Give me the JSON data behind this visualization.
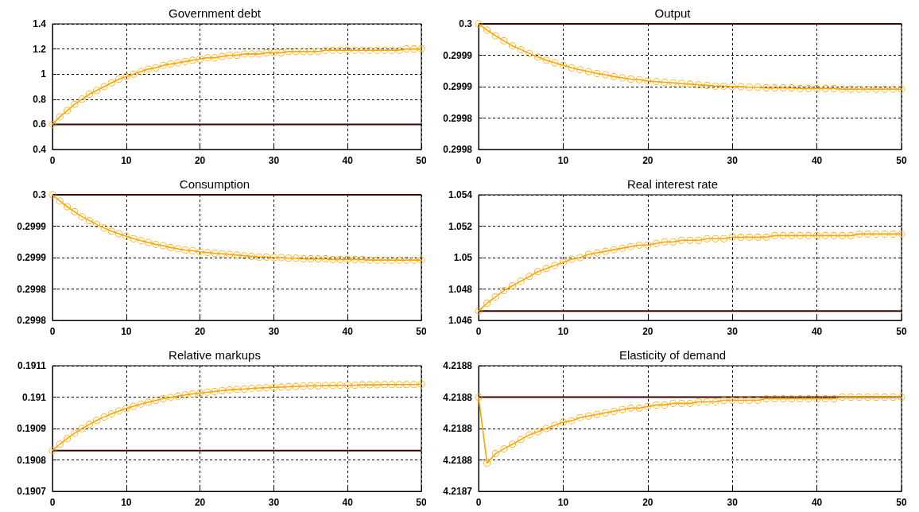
{
  "chart_data": [
    {
      "type": "line",
      "title": "Government debt",
      "x": [
        0,
        1,
        2,
        3,
        4,
        5,
        6,
        7,
        8,
        9,
        10,
        11,
        12,
        13,
        14,
        15,
        16,
        17,
        18,
        19,
        20,
        21,
        22,
        23,
        24,
        25,
        26,
        27,
        28,
        29,
        30,
        31,
        32,
        33,
        34,
        35,
        36,
        37,
        38,
        39,
        40,
        41,
        42,
        43,
        44,
        45,
        46,
        47,
        48,
        49,
        50
      ],
      "series": [
        {
          "color": "#ffa500",
          "values": [
            0.6,
            0.66,
            0.71,
            0.76,
            0.8,
            0.84,
            0.87,
            0.9,
            0.93,
            0.96,
            0.98,
            1.0,
            1.02,
            1.04,
            1.05,
            1.07,
            1.08,
            1.09,
            1.1,
            1.11,
            1.12,
            1.13,
            1.13,
            1.14,
            1.15,
            1.15,
            1.16,
            1.16,
            1.16,
            1.17,
            1.17,
            1.17,
            1.18,
            1.18,
            1.18,
            1.18,
            1.18,
            1.19,
            1.19,
            1.19,
            1.19,
            1.19,
            1.19,
            1.19,
            1.19,
            1.19,
            1.19,
            1.19,
            1.2,
            1.2,
            1.2
          ]
        }
      ],
      "xlim": [
        0,
        50
      ],
      "xticks": [
        0,
        10,
        20,
        30,
        40,
        50
      ],
      "ylim": [
        0.4,
        1.4
      ],
      "yticks": [
        0.4,
        0.6,
        0.8,
        1,
        1.2,
        1.4
      ],
      "ref_lines": [
        {
          "axis": "y",
          "value": 0.6,
          "color": "#3c0000"
        }
      ],
      "grid": true,
      "marker": "circle",
      "line_style": "solid"
    },
    {
      "type": "line",
      "title": "Output",
      "x": [
        0,
        1,
        2,
        3,
        4,
        5,
        6,
        7,
        8,
        9,
        10,
        11,
        12,
        13,
        14,
        15,
        16,
        17,
        18,
        19,
        20,
        21,
        22,
        23,
        24,
        25,
        26,
        27,
        28,
        29,
        30,
        31,
        32,
        33,
        34,
        35,
        36,
        37,
        38,
        39,
        40,
        41,
        42,
        43,
        44,
        45,
        46,
        47,
        48,
        49,
        50
      ],
      "series": [
        {
          "color": "#ffa500",
          "values": [
            0.3,
            0.29999,
            0.299981,
            0.299973,
            0.299965,
            0.299959,
            0.299953,
            0.299947,
            0.299942,
            0.299938,
            0.299934,
            0.29993,
            0.299927,
            0.299924,
            0.299921,
            0.299919,
            0.299916,
            0.299914,
            0.299912,
            0.299911,
            0.299909,
            0.299908,
            0.299907,
            0.299906,
            0.299905,
            0.299904,
            0.299903,
            0.299902,
            0.299901,
            0.299901,
            0.2999,
            0.2999,
            0.299899,
            0.299899,
            0.299898,
            0.299898,
            0.299898,
            0.299898,
            0.299897,
            0.299897,
            0.299897,
            0.299897,
            0.299897,
            0.299896,
            0.299896,
            0.299896,
            0.299896,
            0.299896,
            0.299896,
            0.299896,
            0.299896
          ]
        }
      ],
      "xlim": [
        0,
        50
      ],
      "xticks": [
        0,
        10,
        20,
        30,
        40,
        50
      ],
      "ylim": [
        0.2998,
        0.3
      ],
      "yticks": [
        {
          "value": 0.2998,
          "label": "0.2998"
        },
        {
          "value": 0.29985,
          "label": "0.2998"
        },
        {
          "value": 0.2999,
          "label": "0.2999"
        },
        {
          "value": 0.29995,
          "label": "0.2999"
        },
        {
          "value": 0.3,
          "label": "0.3"
        }
      ],
      "ref_lines": [
        {
          "axis": "y",
          "value": 0.3,
          "color": "#3c0000"
        }
      ],
      "grid": true,
      "marker": "circle",
      "line_style": "solid"
    },
    {
      "type": "line",
      "title": "Consumption",
      "x": [
        0,
        1,
        2,
        3,
        4,
        5,
        6,
        7,
        8,
        9,
        10,
        11,
        12,
        13,
        14,
        15,
        16,
        17,
        18,
        19,
        20,
        21,
        22,
        23,
        24,
        25,
        26,
        27,
        28,
        29,
        30,
        31,
        32,
        33,
        34,
        35,
        36,
        37,
        38,
        39,
        40,
        41,
        42,
        43,
        44,
        45,
        46,
        47,
        48,
        49,
        50
      ],
      "series": [
        {
          "color": "#ffa500",
          "values": [
            0.3,
            0.29999,
            0.299981,
            0.299973,
            0.299965,
            0.299959,
            0.299953,
            0.299947,
            0.299942,
            0.299938,
            0.299934,
            0.29993,
            0.299927,
            0.299924,
            0.299921,
            0.299919,
            0.299916,
            0.299914,
            0.299912,
            0.299911,
            0.299909,
            0.299908,
            0.299907,
            0.299906,
            0.299905,
            0.299904,
            0.299903,
            0.299902,
            0.299901,
            0.299901,
            0.2999,
            0.2999,
            0.299899,
            0.299899,
            0.299898,
            0.299898,
            0.299898,
            0.299898,
            0.299897,
            0.299897,
            0.299897,
            0.299897,
            0.299897,
            0.299896,
            0.299896,
            0.299896,
            0.299896,
            0.299896,
            0.299896,
            0.299896,
            0.299896
          ]
        }
      ],
      "xlim": [
        0,
        50
      ],
      "xticks": [
        0,
        10,
        20,
        30,
        40,
        50
      ],
      "ylim": [
        0.2998,
        0.3
      ],
      "yticks": [
        {
          "value": 0.2998,
          "label": "0.2998"
        },
        {
          "value": 0.29985,
          "label": "0.2998"
        },
        {
          "value": 0.2999,
          "label": "0.2999"
        },
        {
          "value": 0.29995,
          "label": "0.2999"
        },
        {
          "value": 0.3,
          "label": "0.3"
        }
      ],
      "ref_lines": [
        {
          "axis": "y",
          "value": 0.3,
          "color": "#3c0000"
        }
      ],
      "grid": true,
      "marker": "circle",
      "line_style": "solid"
    },
    {
      "type": "line",
      "title": "Real interest rate",
      "x": [
        0,
        1,
        2,
        3,
        4,
        5,
        6,
        7,
        8,
        9,
        10,
        11,
        12,
        13,
        14,
        15,
        16,
        17,
        18,
        19,
        20,
        21,
        22,
        23,
        24,
        25,
        26,
        27,
        28,
        29,
        30,
        31,
        32,
        33,
        34,
        35,
        36,
        37,
        38,
        39,
        40,
        41,
        42,
        43,
        44,
        45,
        46,
        47,
        48,
        49,
        50
      ],
      "series": [
        {
          "color": "#ffa500",
          "values": [
            1.0466,
            1.0471,
            1.0475,
            1.0479,
            1.0482,
            1.0485,
            1.0488,
            1.0491,
            1.0493,
            1.0495,
            1.0497,
            1.0499,
            1.05,
            1.0502,
            1.0503,
            1.0504,
            1.0505,
            1.0506,
            1.0507,
            1.0508,
            1.0508,
            1.0509,
            1.051,
            1.051,
            1.0511,
            1.0511,
            1.0511,
            1.0512,
            1.0512,
            1.0512,
            1.0513,
            1.0513,
            1.0513,
            1.0513,
            1.0513,
            1.0514,
            1.0514,
            1.0514,
            1.0514,
            1.0514,
            1.0514,
            1.0514,
            1.0514,
            1.0514,
            1.0514,
            1.0515,
            1.0515,
            1.0515,
            1.0515,
            1.0515,
            1.0515
          ]
        }
      ],
      "xlim": [
        0,
        50
      ],
      "xticks": [
        0,
        10,
        20,
        30,
        40,
        50
      ],
      "ylim": [
        1.046,
        1.054
      ],
      "yticks": [
        1.046,
        1.048,
        1.05,
        1.052,
        1.054
      ],
      "ref_lines": [
        {
          "axis": "y",
          "value": 1.0466,
          "color": "#3c0000"
        }
      ],
      "grid": true,
      "marker": "circle",
      "line_style": "solid"
    },
    {
      "type": "line",
      "title": "Relative markups",
      "x": [
        0,
        1,
        2,
        3,
        4,
        5,
        6,
        7,
        8,
        9,
        10,
        11,
        12,
        13,
        14,
        15,
        16,
        17,
        18,
        19,
        20,
        21,
        22,
        23,
        24,
        25,
        26,
        27,
        28,
        29,
        30,
        31,
        32,
        33,
        34,
        35,
        36,
        37,
        38,
        39,
        40,
        41,
        42,
        43,
        44,
        45,
        46,
        47,
        48,
        49,
        50
      ],
      "series": [
        {
          "color": "#ffa500",
          "values": [
            0.19083,
            0.19085,
            0.190868,
            0.190885,
            0.1909,
            0.190913,
            0.190926,
            0.190937,
            0.190947,
            0.190956,
            0.190964,
            0.190971,
            0.190978,
            0.190984,
            0.19099,
            0.190995,
            0.190999,
            0.191003,
            0.191007,
            0.19101,
            0.191013,
            0.191016,
            0.191018,
            0.191021,
            0.191023,
            0.191025,
            0.191026,
            0.191028,
            0.191029,
            0.19103,
            0.191031,
            0.191032,
            0.191033,
            0.191034,
            0.191035,
            0.191036,
            0.191036,
            0.191037,
            0.191037,
            0.191038,
            0.191038,
            0.191038,
            0.191039,
            0.191039,
            0.191039,
            0.19104,
            0.19104,
            0.19104,
            0.19104,
            0.19104,
            0.191041
          ]
        }
      ],
      "xlim": [
        0,
        50
      ],
      "xticks": [
        0,
        10,
        20,
        30,
        40,
        50
      ],
      "ylim": [
        0.1907,
        0.1911
      ],
      "yticks": [
        0.1907,
        0.1908,
        0.1909,
        0.191,
        0.1911
      ],
      "ref_lines": [
        {
          "axis": "y",
          "value": 0.19083,
          "color": "#3c0000"
        }
      ],
      "grid": true,
      "marker": "circle",
      "line_style": "solid"
    },
    {
      "type": "line",
      "title": "Elasticity of demand",
      "x": [
        0,
        1,
        2,
        3,
        4,
        5,
        6,
        7,
        8,
        9,
        10,
        11,
        12,
        13,
        14,
        15,
        16,
        17,
        18,
        19,
        20,
        21,
        22,
        23,
        24,
        25,
        26,
        27,
        28,
        29,
        30,
        31,
        32,
        33,
        34,
        35,
        36,
        37,
        38,
        39,
        40,
        41,
        42,
        43,
        44,
        45,
        46,
        47,
        48,
        49,
        50
      ],
      "series": [
        {
          "color": "#ffa500",
          "values": [
            4.2188,
            4.218758,
            4.218764,
            4.218767,
            4.21877,
            4.218773,
            4.218776,
            4.218778,
            4.21878,
            4.218782,
            4.218784,
            4.218785,
            4.218787,
            4.218788,
            4.218789,
            4.21879,
            4.218791,
            4.218792,
            4.218793,
            4.218793,
            4.218794,
            4.218795,
            4.218795,
            4.218796,
            4.218796,
            4.218796,
            4.218797,
            4.218797,
            4.218797,
            4.218798,
            4.218798,
            4.218798,
            4.218798,
            4.218798,
            4.218799,
            4.218799,
            4.218799,
            4.218799,
            4.218799,
            4.218799,
            4.218799,
            4.218799,
            4.218799,
            4.2188,
            4.2188,
            4.2188,
            4.2188,
            4.2188,
            4.2188,
            4.2188,
            4.2188
          ]
        }
      ],
      "xlim": [
        0,
        50
      ],
      "xticks": [
        0,
        10,
        20,
        30,
        40,
        50
      ],
      "ylim": [
        4.21874,
        4.21882
      ],
      "yticks": [
        {
          "value": 4.21874,
          "label": "4.2187"
        },
        {
          "value": 4.21876,
          "label": "4.2188"
        },
        {
          "value": 4.21878,
          "label": "4.2188"
        },
        {
          "value": 4.2188,
          "label": "4.2188"
        },
        {
          "value": 4.21882,
          "label": "4.2188"
        }
      ],
      "ref_lines": [
        {
          "axis": "y",
          "value": 4.2188,
          "color": "#3c0000"
        }
      ],
      "grid": true,
      "marker": "circle",
      "line_style": "solid"
    }
  ]
}
